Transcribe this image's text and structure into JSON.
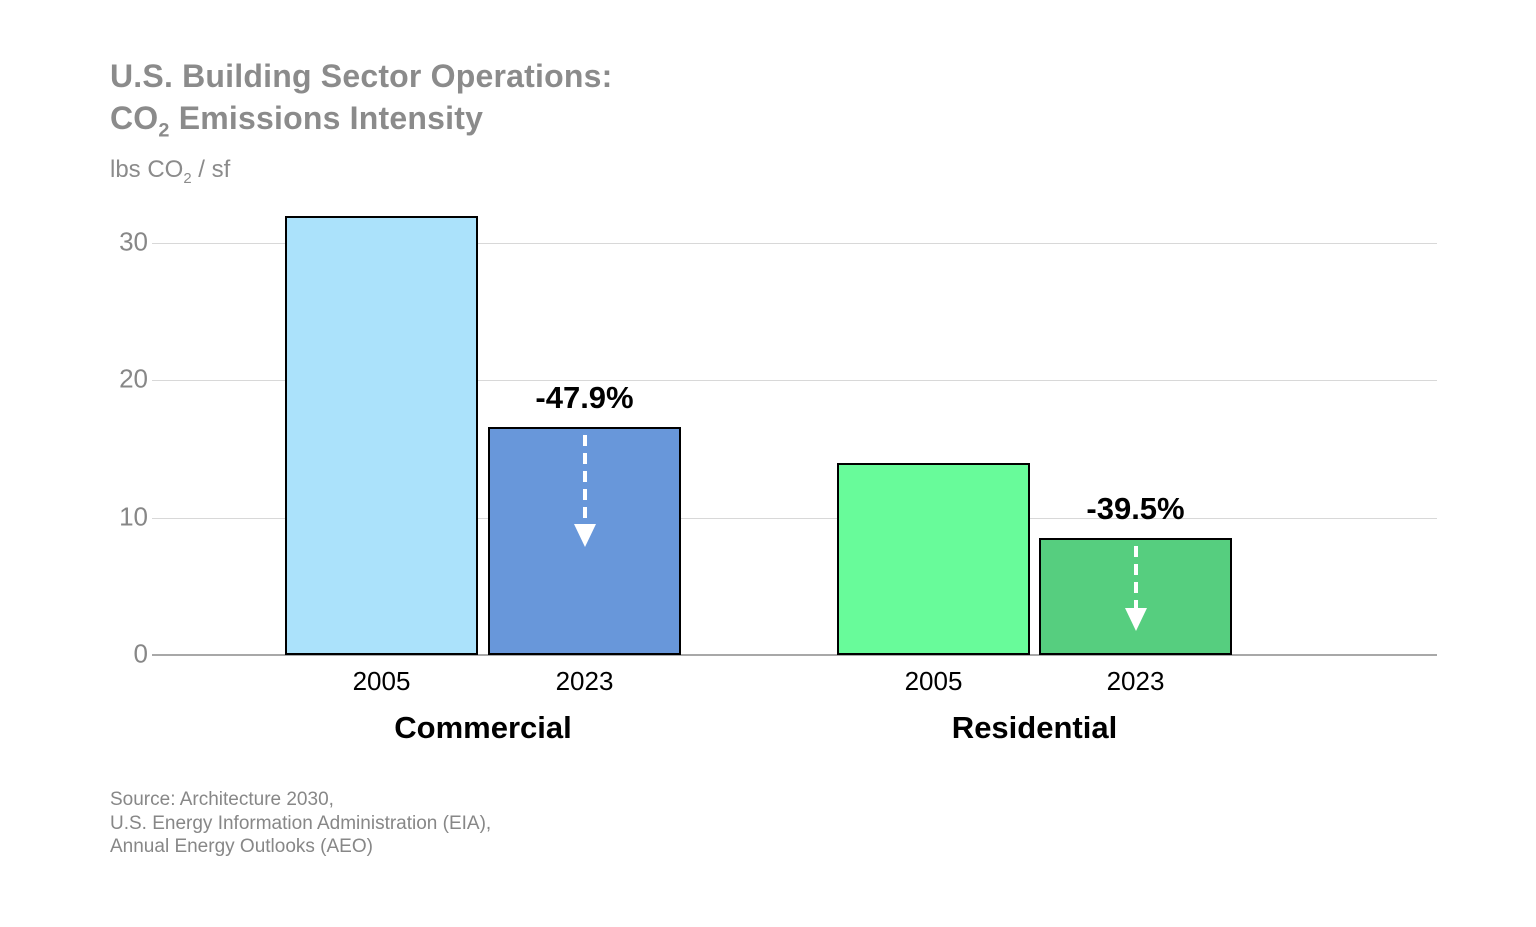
{
  "title": {
    "line1": "U.S. Building Sector Operations:",
    "line2_prefix": "CO",
    "line2_sub": "2",
    "line2_rest": " Emissions Intensity"
  },
  "unit": {
    "prefix": "lbs CO",
    "sub": "2",
    "suffix": " / sf"
  },
  "source": {
    "line1": "Source: Architecture 2030,",
    "line2": "U.S. Energy Information Administration (EIA),",
    "line3": "Annual Energy Outlooks (AEO)"
  },
  "chart_data": {
    "type": "bar",
    "title": "U.S. Building Sector Operations: CO2 Emissions Intensity",
    "ylabel": "lbs CO2 / sf",
    "xlabel": "",
    "ylim": [
      0,
      33
    ],
    "yticks": [
      0,
      10,
      20,
      30
    ],
    "grid": "horizontal",
    "legend": "none",
    "colors": {
      "commercial_2005": "#ABE2FB",
      "commercial_2023": "#6897DA",
      "residential_2005": "#68FB9A",
      "residential_2023": "#56CE7F",
      "bar_border": "#000000",
      "gridline": "#d8d8d8",
      "axis_baseline": "#a8a8a8",
      "title_gray": "#8b8b8b",
      "arrow_white": "#ffffff"
    },
    "groups": [
      {
        "label": "Commercial",
        "bars": [
          {
            "year": "2005",
            "value": 32.0,
            "color": "#ABE2FB"
          },
          {
            "year": "2023",
            "value": 16.6,
            "color": "#6897DA",
            "change_label": "-47.9%",
            "arrow": true
          }
        ]
      },
      {
        "label": "Residential",
        "bars": [
          {
            "year": "2005",
            "value": 14.0,
            "color": "#68FB9A"
          },
          {
            "year": "2023",
            "value": 8.5,
            "color": "#56CE7F",
            "change_label": "-39.5%",
            "arrow": true
          }
        ]
      }
    ]
  }
}
